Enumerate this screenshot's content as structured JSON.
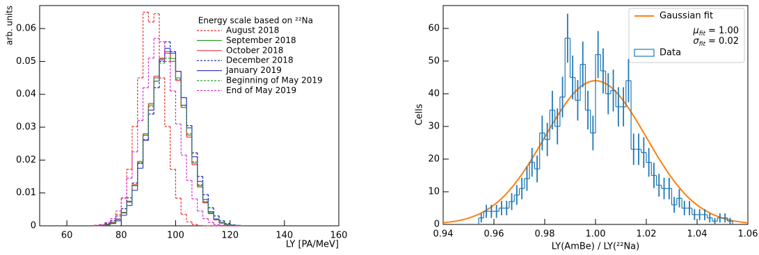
{
  "chart_data": [
    {
      "type": "histogram",
      "ylabel": "arb. units",
      "xlabel": "LY [PA/MeV]",
      "legend_title": "Energy scale based on ²²Na",
      "legend": "upper right",
      "xlim": [
        50,
        160
      ],
      "ylim": [
        0,
        0.067
      ],
      "xticks": [
        60,
        80,
        100,
        120,
        140,
        160
      ],
      "yticks": [
        0,
        0.01,
        0.02,
        0.03,
        0.04,
        0.05,
        0.06
      ],
      "bins": [
        70,
        72,
        74,
        76,
        78,
        80,
        82,
        84,
        86,
        88,
        90,
        92,
        94,
        96,
        98,
        100,
        102,
        104,
        106,
        108,
        110,
        112,
        114,
        116,
        118,
        120,
        122,
        124
      ],
      "series": [
        {
          "name": "August 2018",
          "color": "#e8302a",
          "dashed": true,
          "values": [
            0,
            0.0001,
            0.0004,
            0.0012,
            0.0035,
            0.0084,
            0.0172,
            0.0302,
            0.045,
            0.065,
            0.062,
            0.0645,
            0.045,
            0.0302,
            0.0172,
            0.0084,
            0.0035,
            0.0012,
            0.0004,
            0.0001,
            0,
            0,
            0,
            0,
            0,
            0,
            0
          ]
        },
        {
          "name": "September 2018",
          "color": "#2a9a2a",
          "dashed": false,
          "values": [
            0.0001,
            0.0002,
            0.0004,
            0.0009,
            0.0019,
            0.0039,
            0.0072,
            0.0122,
            0.0191,
            0.0276,
            0.0367,
            0.045,
            0.0509,
            0.053,
            0.0509,
            0.045,
            0.0367,
            0.0276,
            0.0191,
            0.0122,
            0.0072,
            0.0039,
            0.0019,
            0.0009,
            0.0004,
            0.0002,
            0.0001
          ]
        },
        {
          "name": "October 2018",
          "color": "#e8304a",
          "dashed": false,
          "values": [
            0.0001,
            0.0002,
            0.0005,
            0.001,
            0.0021,
            0.0041,
            0.0075,
            0.0125,
            0.0196,
            0.028,
            0.0372,
            0.0455,
            0.051,
            0.0525,
            0.05,
            0.0442,
            0.036,
            0.027,
            0.0186,
            0.0118,
            0.007,
            0.0037,
            0.0018,
            0.0008,
            0.0003,
            0.0001,
            0.0001
          ]
        },
        {
          "name": "December 2018",
          "color": "#1a1aa0",
          "dashed": true,
          "values": [
            0.0002,
            0.0004,
            0.0008,
            0.0016,
            0.003,
            0.0052,
            0.0085,
            0.013,
            0.019,
            0.0262,
            0.034,
            0.042,
            0.05,
            0.056,
            0.053,
            0.047,
            0.039,
            0.0305,
            0.0222,
            0.015,
            0.0095,
            0.0055,
            0.003,
            0.0015,
            0.0007,
            0.0003,
            0.0001
          ]
        },
        {
          "name": "January 2019",
          "color": "#3a3ad0",
          "dashed": false,
          "values": [
            0.0001,
            0.0001,
            0.0003,
            0.0007,
            0.0015,
            0.0032,
            0.0062,
            0.0108,
            0.0175,
            0.026,
            0.0352,
            0.044,
            0.0505,
            0.054,
            0.0525,
            0.047,
            0.039,
            0.0298,
            0.021,
            0.0135,
            0.008,
            0.0043,
            0.0021,
            0.001,
            0.0004,
            0.0002,
            0.0001
          ]
        },
        {
          "name": "Beginning of May 2019",
          "color": "#2a9a2a",
          "dashed": true,
          "values": [
            0.0001,
            0.0002,
            0.0004,
            0.001,
            0.002,
            0.004,
            0.0073,
            0.0123,
            0.0192,
            0.0275,
            0.0362,
            0.044,
            0.0495,
            0.051,
            0.05,
            0.0445,
            0.0365,
            0.028,
            0.0195,
            0.0125,
            0.0074,
            0.004,
            0.002,
            0.001,
            0.0004,
            0.0002,
            0.0001
          ]
        },
        {
          "name": "End of May 2019",
          "color": "#d030d0",
          "dashed": true,
          "values": [
            0.0002,
            0.0004,
            0.001,
            0.0022,
            0.0045,
            0.0085,
            0.0145,
            0.0225,
            0.032,
            0.042,
            0.051,
            0.057,
            0.056,
            0.05,
            0.041,
            0.031,
            0.0215,
            0.0138,
            0.0082,
            0.0045,
            0.0022,
            0.001,
            0.0004,
            0.0002,
            0.0001,
            0,
            0
          ]
        }
      ]
    },
    {
      "type": "histogram",
      "ylabel": "Cells",
      "xlabel": "LY(AmBe) / LY(²²Na)",
      "legend": "upper right",
      "xlim": [
        0.94,
        1.06
      ],
      "ylim": [
        0,
        67
      ],
      "xticks": [
        0.94,
        0.96,
        0.98,
        {
          "value": 1,
          "label": "1.00"
        },
        1.02,
        1.04,
        1.06
      ],
      "yticks": [
        0,
        10,
        20,
        30,
        40,
        50,
        60
      ],
      "annotations": [
        {
          "symbol": "μ",
          "subscript": "fit",
          "text": "= 1.00"
        },
        {
          "symbol": "σ",
          "subscript": "fit",
          "text": "= 0.02"
        }
      ],
      "bins": [
        0.954,
        0.956,
        0.958,
        0.96,
        0.962,
        0.964,
        0.966,
        0.968,
        0.97,
        0.972,
        0.974,
        0.976,
        0.978,
        0.98,
        0.982,
        0.984,
        0.986,
        0.988,
        0.99,
        0.992,
        0.994,
        0.996,
        0.998,
        1.0,
        1.002,
        1.004,
        1.006,
        1.008,
        1.01,
        1.012,
        1.014,
        1.016,
        1.018,
        1.02,
        1.022,
        1.024,
        1.026,
        1.028,
        1.03,
        1.032,
        1.034,
        1.036,
        1.038,
        1.04,
        1.042,
        1.044,
        1.046,
        1.048,
        1.05,
        1.052,
        1.054
      ],
      "series": [
        {
          "name": "Gaussian fit",
          "type": "line",
          "color": "#ff7f0e",
          "x": [
            0.94,
            0.945,
            0.95,
            0.955,
            0.96,
            0.965,
            0.97,
            0.975,
            0.98,
            0.985,
            0.99,
            0.995,
            1.0,
            1.005,
            1.01,
            1.015,
            1.02,
            1.025,
            1.03,
            1.035,
            1.04,
            1.045,
            1.05,
            1.055,
            1.06
          ],
          "values": [
            0.49,
            1.0,
            1.93,
            3.51,
            5.95,
            9.49,
            14.28,
            20.14,
            26.69,
            33.22,
            38.83,
            42.65,
            44,
            42.65,
            38.83,
            33.22,
            26.69,
            20.14,
            14.28,
            9.49,
            5.95,
            3.51,
            1.93,
            1.0,
            0.49
          ]
        },
        {
          "name": "Data",
          "color": "#1f77b4",
          "values": [
            2,
            4,
            4,
            4,
            5,
            5,
            7,
            9,
            11,
            14,
            19,
            17,
            28,
            26,
            35,
            30,
            39,
            57,
            45,
            38,
            49,
            35,
            28,
            52,
            47,
            40,
            41,
            36,
            36,
            44,
            23,
            23,
            22,
            19,
            15,
            12,
            11,
            11,
            6,
            8,
            5,
            5,
            3,
            3,
            3,
            2,
            1,
            2,
            2,
            1
          ],
          "errors": [
            1.4,
            2,
            2,
            2,
            2.2,
            2.2,
            2.6,
            3,
            3.3,
            3.7,
            4.4,
            4.1,
            5.3,
            5.1,
            5.9,
            5.5,
            6.2,
            7.5,
            6.7,
            6.2,
            7,
            5.9,
            5.3,
            7.2,
            6.9,
            6.3,
            6.4,
            6,
            6,
            6.6,
            4.8,
            4.8,
            4.7,
            4.4,
            3.9,
            3.5,
            3.3,
            3.3,
            2.4,
            2.8,
            2.2,
            2.2,
            1.7,
            1.7,
            1.7,
            1.4,
            1,
            1.4,
            1.4,
            1
          ]
        }
      ]
    }
  ]
}
